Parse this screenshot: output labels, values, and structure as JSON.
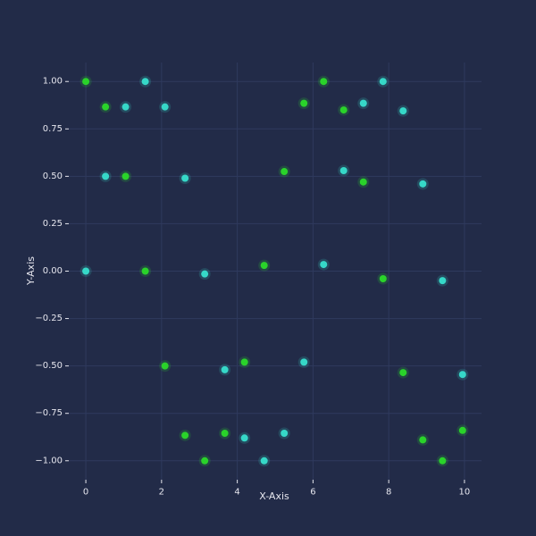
{
  "chart_data": {
    "type": "scatter",
    "title": "",
    "xlabel": "X-Axis",
    "ylabel": "Y-Axis",
    "xlim": [
      -0.45,
      10.45
    ],
    "ylim": [
      -1.1,
      1.1
    ],
    "xticks": [
      0,
      2,
      4,
      6,
      8,
      10
    ],
    "xtick_labels": [
      "0",
      "2",
      "4",
      "6",
      "8",
      "10"
    ],
    "yticks": [
      1.0,
      0.75,
      0.5,
      0.25,
      0.0,
      -0.25,
      -0.5,
      -0.75,
      -1.0
    ],
    "ytick_labels": [
      "1.00",
      "0.75",
      "0.50",
      "0.25",
      "0.00",
      "−0.25",
      "−0.50",
      "−0.75",
      "−1.00"
    ],
    "grid": true,
    "series": [
      {
        "color": "#2ad32a",
        "points": [
          [
            0.0,
            1.0
          ],
          [
            0.52,
            0.866
          ],
          [
            1.05,
            0.5
          ],
          [
            1.57,
            0.0
          ],
          [
            2.09,
            -0.5
          ],
          [
            2.62,
            -0.866
          ],
          [
            3.14,
            -1.0
          ],
          [
            3.67,
            -0.855
          ],
          [
            4.19,
            -0.48
          ],
          [
            4.71,
            0.03
          ],
          [
            5.76,
            0.885
          ],
          [
            5.24,
            0.525
          ],
          [
            6.28,
            1.0
          ],
          [
            6.81,
            0.85
          ],
          [
            7.33,
            0.47
          ],
          [
            7.85,
            -0.04
          ],
          [
            8.38,
            -0.535
          ],
          [
            8.9,
            -0.89
          ],
          [
            9.42,
            -1.0
          ],
          [
            9.95,
            -0.84
          ]
        ]
      },
      {
        "color": "#36d8c8",
        "points": [
          [
            0.0,
            0.0
          ],
          [
            0.52,
            0.5
          ],
          [
            1.05,
            0.866
          ],
          [
            1.57,
            1.0
          ],
          [
            2.09,
            0.866
          ],
          [
            2.62,
            0.49
          ],
          [
            3.14,
            -0.015
          ],
          [
            3.67,
            -0.52
          ],
          [
            4.19,
            -0.88
          ],
          [
            4.71,
            -1.0
          ],
          [
            5.24,
            -0.855
          ],
          [
            5.76,
            -0.48
          ],
          [
            6.28,
            0.035
          ],
          [
            6.81,
            0.53
          ],
          [
            7.33,
            0.885
          ],
          [
            7.85,
            1.0
          ],
          [
            8.38,
            0.845
          ],
          [
            8.9,
            0.46
          ],
          [
            9.42,
            -0.05
          ],
          [
            9.95,
            -0.545
          ]
        ]
      }
    ]
  }
}
